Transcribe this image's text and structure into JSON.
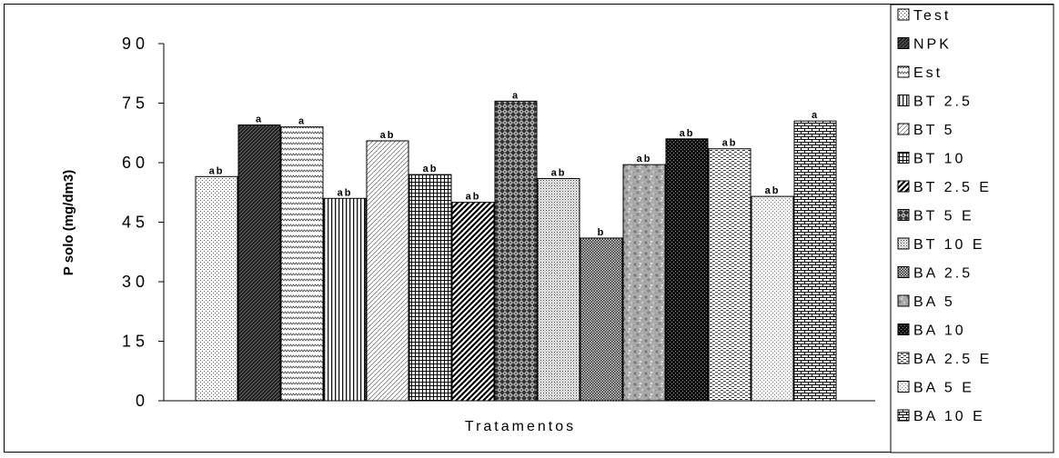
{
  "chart_data": {
    "type": "bar",
    "title": "",
    "xlabel": "Tratamentos",
    "ylabel": "P solo (mg/dm3)",
    "ylim": [
      0,
      90
    ],
    "yticks": [
      "0",
      "15",
      "30",
      "45",
      "60",
      "75",
      "90"
    ],
    "grid": false,
    "legend_position": "right",
    "categories": [
      "Test",
      "NPK",
      "Est",
      "BT 2.5",
      "BT 5",
      "BT 10",
      "BT 2.5 E",
      "BT 5 E",
      "BT 10 E",
      "BA 2.5",
      "BA 5",
      "BA 10",
      "BA 2.5 E",
      "BA 5 E",
      "BA 10 E"
    ],
    "values": [
      56.5,
      69.5,
      69,
      51,
      65.5,
      57,
      50,
      75.5,
      56,
      41,
      59.5,
      66,
      63.5,
      51.5,
      70.5
    ],
    "data_labels": [
      "ab",
      "a",
      "a",
      "ab",
      "ab",
      "ab",
      "ab",
      "a",
      "ab",
      "b",
      "ab",
      "ab",
      "ab",
      "ab",
      "a"
    ],
    "legend": [
      "Test",
      "NPK",
      "Est",
      "BT 2.5",
      "BT 5",
      "BT 10",
      "BT 2.5 E",
      "BT 5 E",
      "BT 10 E",
      "BA 2.5",
      "BA 5",
      "BA 10",
      "BA 2.5 E",
      "BA 5 E",
      "BA 10 E"
    ],
    "patterns": [
      "fine-dots",
      "dark-diagonal",
      "zigzag",
      "vertical-lines",
      "light-diagonal",
      "grid",
      "wide-diagonal",
      "diamond-check",
      "dense-dots",
      "dark-dots",
      "granite",
      "dark-check",
      "horizontal-dash",
      "speckle",
      "brick"
    ]
  }
}
